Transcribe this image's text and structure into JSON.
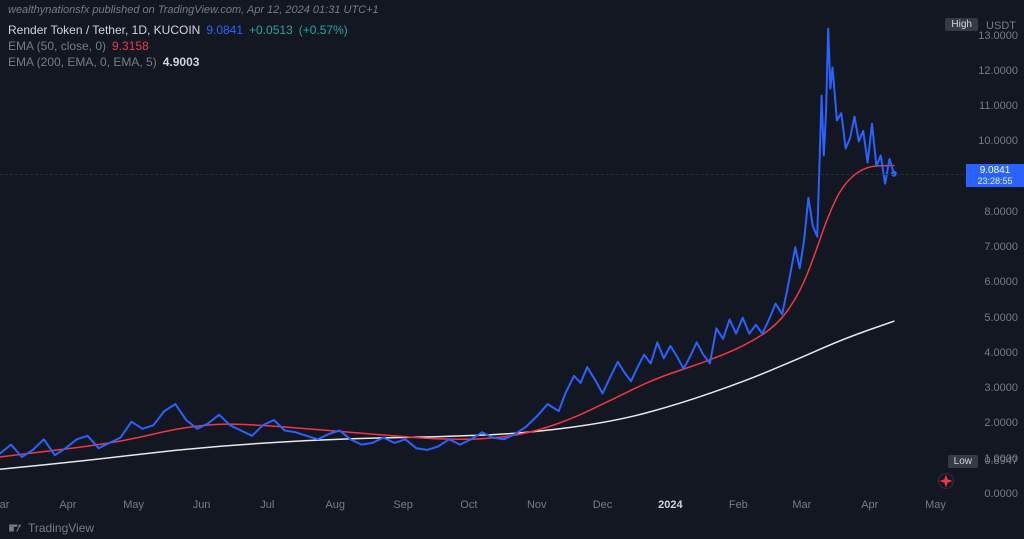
{
  "header": {
    "text": "wealthynationsfx published on TradingView.com, Apr 12, 2024 01:31 UTC+1"
  },
  "legend": {
    "symbol": "Render Token / Tether, 1D, KUCOIN",
    "price": "9.0841",
    "change": "+0.0513",
    "change_pct": "(+0.57%)",
    "ema50": {
      "label": "EMA (50, close, 0)",
      "value": "9.3158"
    },
    "ema200": {
      "label": "EMA (200, EMA, 0, EMA, 5)",
      "value": "4.9003"
    }
  },
  "yaxis": {
    "unit": "USDT",
    "ticks": [
      {
        "v": 13.0,
        "label": "13.0000"
      },
      {
        "v": 12.0,
        "label": "12.0000"
      },
      {
        "v": 11.0,
        "label": "11.0000"
      },
      {
        "v": 10.0,
        "label": "10.0000"
      },
      {
        "v": 8.0,
        "label": "8.0000"
      },
      {
        "v": 7.0,
        "label": "7.0000"
      },
      {
        "v": 6.0,
        "label": "6.0000"
      },
      {
        "v": 5.0,
        "label": "5.0000"
      },
      {
        "v": 4.0,
        "label": "4.0000"
      },
      {
        "v": 3.0,
        "label": "3.0000"
      },
      {
        "v": 2.0,
        "label": "2.0000"
      },
      {
        "v": 1.0,
        "label": "1.0000"
      },
      {
        "v": 0.0,
        "label": "0.0000"
      }
    ],
    "ylim": [
      0,
      13.5
    ],
    "high_label": "High",
    "low_label": "Low",
    "low_value": "0.8947",
    "price_badge": {
      "price": "9.0841",
      "countdown": "23:28:55",
      "y": 9.0841
    }
  },
  "xaxis": {
    "labels": [
      {
        "t": 0,
        "label": "Mar"
      },
      {
        "t": 31,
        "label": "Apr"
      },
      {
        "t": 61,
        "label": "May"
      },
      {
        "t": 92,
        "label": "Jun"
      },
      {
        "t": 122,
        "label": "Jul"
      },
      {
        "t": 153,
        "label": "Aug"
      },
      {
        "t": 184,
        "label": "Sep"
      },
      {
        "t": 214,
        "label": "Oct"
      },
      {
        "t": 245,
        "label": "Nov"
      },
      {
        "t": 275,
        "label": "Dec"
      },
      {
        "t": 306,
        "label": "2024",
        "bold": true
      },
      {
        "t": 337,
        "label": "Feb"
      },
      {
        "t": 366,
        "label": "Mar"
      },
      {
        "t": 397,
        "label": "Apr"
      },
      {
        "t": 427,
        "label": "May"
      }
    ],
    "xlim": [
      0,
      440
    ]
  },
  "series": {
    "price": {
      "color": "#2962ff",
      "width": 2,
      "points": [
        [
          0,
          1.15
        ],
        [
          5,
          1.4
        ],
        [
          10,
          1.05
        ],
        [
          15,
          1.25
        ],
        [
          20,
          1.55
        ],
        [
          25,
          1.1
        ],
        [
          30,
          1.3
        ],
        [
          35,
          1.55
        ],
        [
          40,
          1.65
        ],
        [
          45,
          1.3
        ],
        [
          50,
          1.45
        ],
        [
          55,
          1.6
        ],
        [
          60,
          2.05
        ],
        [
          65,
          1.85
        ],
        [
          70,
          1.95
        ],
        [
          75,
          2.35
        ],
        [
          80,
          2.55
        ],
        [
          85,
          2.1
        ],
        [
          90,
          1.85
        ],
        [
          95,
          2.0
        ],
        [
          100,
          2.25
        ],
        [
          105,
          1.95
        ],
        [
          110,
          1.8
        ],
        [
          115,
          1.65
        ],
        [
          120,
          1.95
        ],
        [
          125,
          2.1
        ],
        [
          130,
          1.8
        ],
        [
          135,
          1.75
        ],
        [
          140,
          1.65
        ],
        [
          145,
          1.55
        ],
        [
          150,
          1.7
        ],
        [
          155,
          1.8
        ],
        [
          160,
          1.55
        ],
        [
          165,
          1.4
        ],
        [
          170,
          1.45
        ],
        [
          175,
          1.6
        ],
        [
          180,
          1.45
        ],
        [
          185,
          1.55
        ],
        [
          190,
          1.3
        ],
        [
          195,
          1.25
        ],
        [
          200,
          1.35
        ],
        [
          205,
          1.55
        ],
        [
          210,
          1.4
        ],
        [
          215,
          1.55
        ],
        [
          220,
          1.75
        ],
        [
          225,
          1.6
        ],
        [
          230,
          1.55
        ],
        [
          235,
          1.7
        ],
        [
          240,
          1.9
        ],
        [
          245,
          2.2
        ],
        [
          250,
          2.55
        ],
        [
          255,
          2.35
        ],
        [
          258,
          2.85
        ],
        [
          262,
          3.35
        ],
        [
          265,
          3.15
        ],
        [
          268,
          3.6
        ],
        [
          272,
          3.2
        ],
        [
          275,
          2.85
        ],
        [
          278,
          3.25
        ],
        [
          282,
          3.75
        ],
        [
          285,
          3.45
        ],
        [
          288,
          3.2
        ],
        [
          291,
          3.6
        ],
        [
          294,
          3.95
        ],
        [
          297,
          3.7
        ],
        [
          300,
          4.3
        ],
        [
          303,
          3.85
        ],
        [
          306,
          4.2
        ],
        [
          309,
          3.9
        ],
        [
          312,
          3.55
        ],
        [
          315,
          3.9
        ],
        [
          318,
          4.3
        ],
        [
          321,
          3.95
        ],
        [
          324,
          3.7
        ],
        [
          327,
          4.7
        ],
        [
          330,
          4.4
        ],
        [
          333,
          4.95
        ],
        [
          336,
          4.55
        ],
        [
          339,
          5.0
        ],
        [
          342,
          4.55
        ],
        [
          345,
          4.8
        ],
        [
          348,
          4.55
        ],
        [
          351,
          4.95
        ],
        [
          354,
          5.4
        ],
        [
          357,
          5.1
        ],
        [
          360,
          6.0
        ],
        [
          363,
          7.0
        ],
        [
          365,
          6.4
        ],
        [
          367,
          7.2
        ],
        [
          369,
          8.4
        ],
        [
          371,
          7.6
        ],
        [
          373,
          7.3
        ],
        [
          375,
          11.3
        ],
        [
          376,
          9.6
        ],
        [
          377,
          10.8
        ],
        [
          378,
          13.2
        ],
        [
          379,
          11.5
        ],
        [
          380,
          12.1
        ],
        [
          382,
          10.6
        ],
        [
          384,
          10.8
        ],
        [
          386,
          9.8
        ],
        [
          388,
          10.1
        ],
        [
          390,
          10.7
        ],
        [
          392,
          10.0
        ],
        [
          394,
          10.3
        ],
        [
          396,
          9.4
        ],
        [
          398,
          10.5
        ],
        [
          400,
          9.3
        ],
        [
          402,
          9.6
        ],
        [
          404,
          8.8
        ],
        [
          406,
          9.5
        ],
        [
          408,
          9.0841
        ]
      ]
    },
    "ema50": {
      "color": "#f23645",
      "width": 1.5,
      "points": [
        [
          0,
          1.05
        ],
        [
          20,
          1.2
        ],
        [
          40,
          1.35
        ],
        [
          60,
          1.55
        ],
        [
          80,
          1.85
        ],
        [
          100,
          2.0
        ],
        [
          120,
          1.95
        ],
        [
          140,
          1.85
        ],
        [
          160,
          1.75
        ],
        [
          180,
          1.65
        ],
        [
          200,
          1.55
        ],
        [
          220,
          1.55
        ],
        [
          240,
          1.7
        ],
        [
          260,
          2.1
        ],
        [
          280,
          2.7
        ],
        [
          300,
          3.3
        ],
        [
          320,
          3.7
        ],
        [
          340,
          4.2
        ],
        [
          355,
          4.8
        ],
        [
          365,
          5.7
        ],
        [
          372,
          6.8
        ],
        [
          378,
          7.9
        ],
        [
          385,
          8.8
        ],
        [
          395,
          9.3
        ],
        [
          408,
          9.3158
        ]
      ]
    },
    "ema200": {
      "color": "#e8e8e8",
      "width": 1.5,
      "points": [
        [
          0,
          0.7
        ],
        [
          40,
          0.95
        ],
        [
          80,
          1.25
        ],
        [
          120,
          1.45
        ],
        [
          160,
          1.58
        ],
        [
          200,
          1.62
        ],
        [
          240,
          1.72
        ],
        [
          280,
          2.05
        ],
        [
          310,
          2.55
        ],
        [
          340,
          3.2
        ],
        [
          365,
          3.85
        ],
        [
          385,
          4.4
        ],
        [
          408,
          4.9
        ]
      ]
    }
  },
  "colors": {
    "bg": "#131722",
    "grid": "#2a2e39",
    "text": "#d1d4dc",
    "muted": "#787b86"
  },
  "logo": {
    "text": "TradingView"
  }
}
